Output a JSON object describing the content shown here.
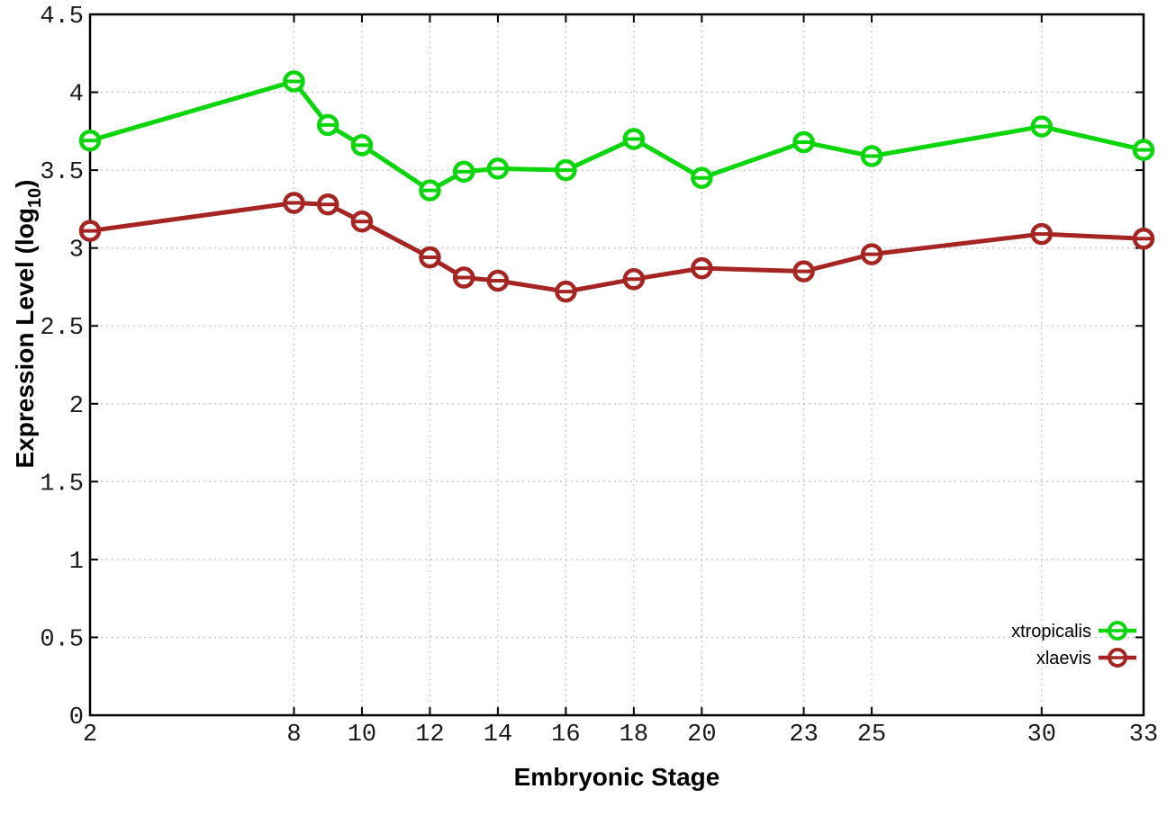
{
  "figure": {
    "background": "#ffffff",
    "ylabel_parts": {
      "main": "Expression Level (log",
      "sub": "10",
      "close": ")"
    }
  },
  "chart_data": {
    "type": "line",
    "title": "",
    "xlabel": "Embryonic Stage",
    "ylabel": "Expression Level (log10)",
    "x": [
      2,
      8,
      9,
      10,
      12,
      13,
      14,
      16,
      18,
      20,
      23,
      25,
      30,
      33
    ],
    "series": [
      {
        "name": "xtropicalis",
        "color": "#0bd60b",
        "marker": "open-circle-with-dash",
        "values": [
          3.69,
          4.07,
          3.79,
          3.66,
          3.37,
          3.49,
          3.51,
          3.5,
          3.7,
          3.45,
          3.68,
          3.59,
          3.78,
          3.63
        ]
      },
      {
        "name": "xlaevis",
        "color": "#a42522",
        "marker": "open-circle-with-dash",
        "values": [
          3.11,
          3.29,
          3.28,
          3.17,
          2.94,
          2.81,
          2.79,
          2.72,
          2.8,
          2.87,
          2.85,
          2.96,
          3.09,
          3.06
        ]
      }
    ],
    "xlim": [
      2,
      33
    ],
    "ylim": [
      0,
      4.5
    ],
    "xticks": [
      2,
      8,
      10,
      12,
      14,
      16,
      18,
      20,
      23,
      25,
      30,
      33
    ],
    "xtick_labels": [
      "2",
      "8",
      "10",
      "12",
      "14",
      "16",
      "18",
      "20",
      "23",
      "25",
      "30",
      "33"
    ],
    "yticks": [
      0,
      0.5,
      1,
      1.5,
      2,
      2.5,
      3,
      3.5,
      4,
      4.5
    ],
    "ytick_labels": [
      "0",
      "0.5",
      "1",
      "1.5",
      "2",
      "2.5",
      "3",
      "3.5",
      "4",
      "4.5"
    ],
    "grid": true,
    "legend": {
      "position": "bottom-right",
      "entries": [
        "xtropicalis",
        "xlaevis"
      ]
    },
    "colors": {
      "axis": "#000000",
      "grid": "#c4c4c4",
      "background": "#ffffff",
      "tick_text": "#1a1a1a"
    }
  }
}
